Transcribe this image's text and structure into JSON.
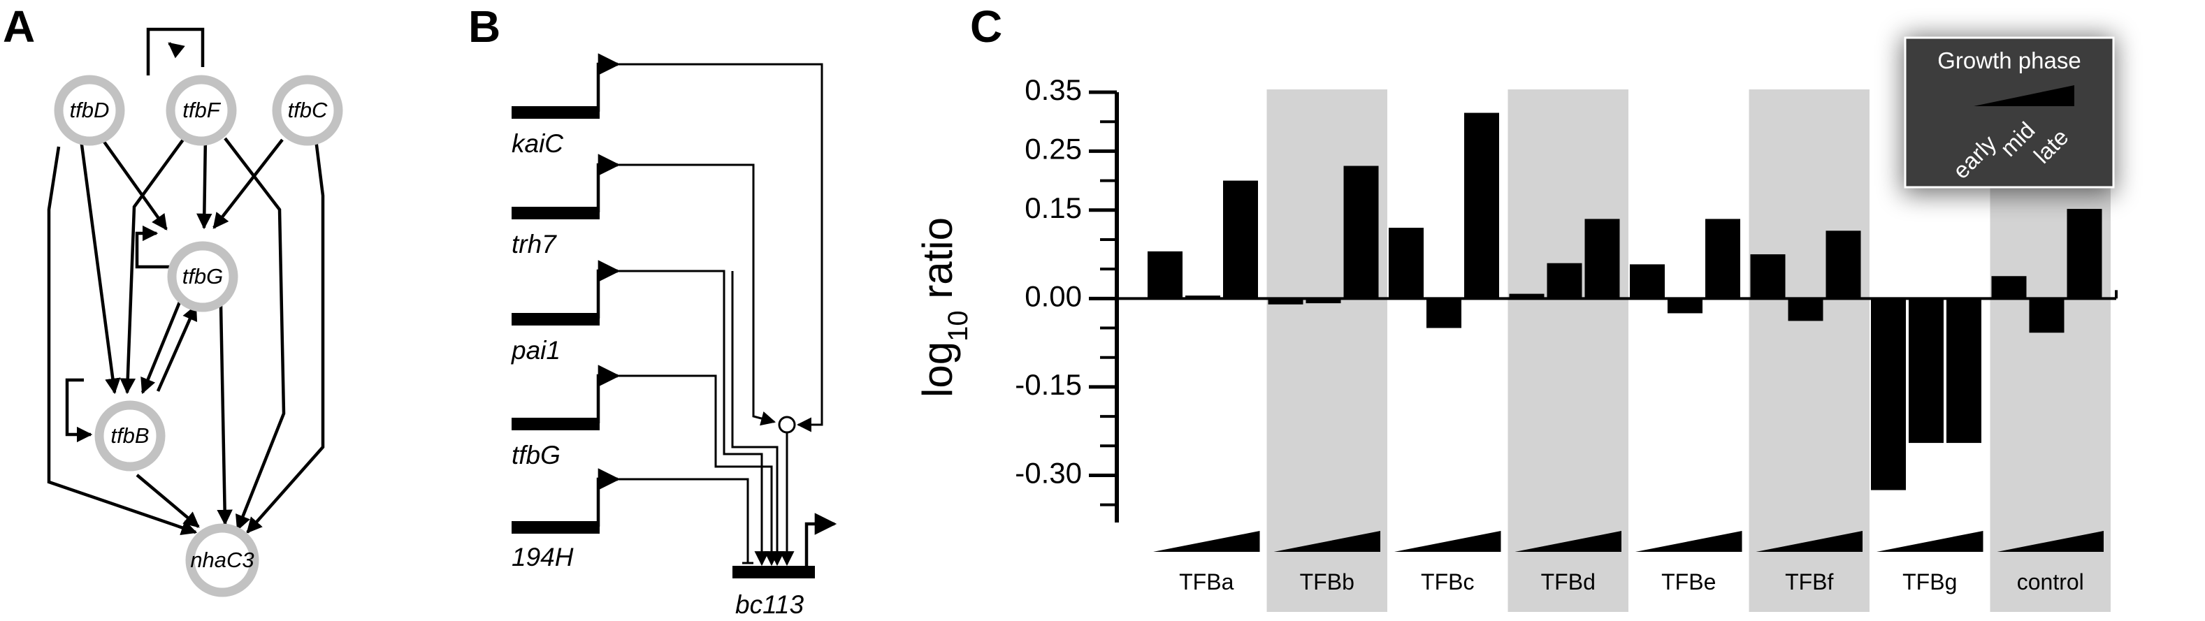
{
  "panels": {
    "a": "A",
    "b": "B",
    "c": "C"
  },
  "network": {
    "nodes": {
      "tfbD": "tfbD",
      "tfbF": "tfbF",
      "tfbC": "tfbC",
      "tfbG": "tfbG",
      "tfbB": "tfbB",
      "nhaC3": "nhaC3"
    }
  },
  "circuit": {
    "inputs": [
      "kaiC",
      "trh7",
      "pai1",
      "tfbG",
      "194H"
    ],
    "target": "bc113"
  },
  "legend": {
    "title": "Growth phase",
    "phases": [
      "early",
      "mid",
      "late"
    ]
  },
  "chart_data": {
    "type": "bar",
    "ylabel_main": "log",
    "ylabel_sub": "10",
    "ylabel_rest": " ratio",
    "ylim": [
      -0.38,
      0.35
    ],
    "yticks": [
      -0.3,
      -0.15,
      0.0,
      0.15,
      0.25,
      0.35
    ],
    "ytick_labels": [
      "-0.30",
      "-0.15",
      "0.00",
      "0.15",
      "0.25",
      "0.35"
    ],
    "groups": [
      "TFBa",
      "TFBb",
      "TFBc",
      "TFBd",
      "TFBe",
      "TFBf",
      "TFBg",
      "control"
    ],
    "shaded_groups": [
      "TFBb",
      "TFBd",
      "TFBf",
      "control"
    ],
    "bars_per_group": [
      "early",
      "mid",
      "late"
    ],
    "values": [
      [
        0.08,
        0.005,
        0.2
      ],
      [
        -0.01,
        -0.008,
        0.225
      ],
      [
        0.12,
        -0.05,
        0.315
      ],
      [
        0.008,
        0.06,
        0.135
      ],
      [
        0.058,
        -0.025,
        0.135
      ],
      [
        0.075,
        -0.038,
        0.115
      ],
      [
        -0.325,
        -0.245,
        -0.245
      ],
      [
        0.038,
        -0.058,
        0.152
      ]
    ]
  }
}
